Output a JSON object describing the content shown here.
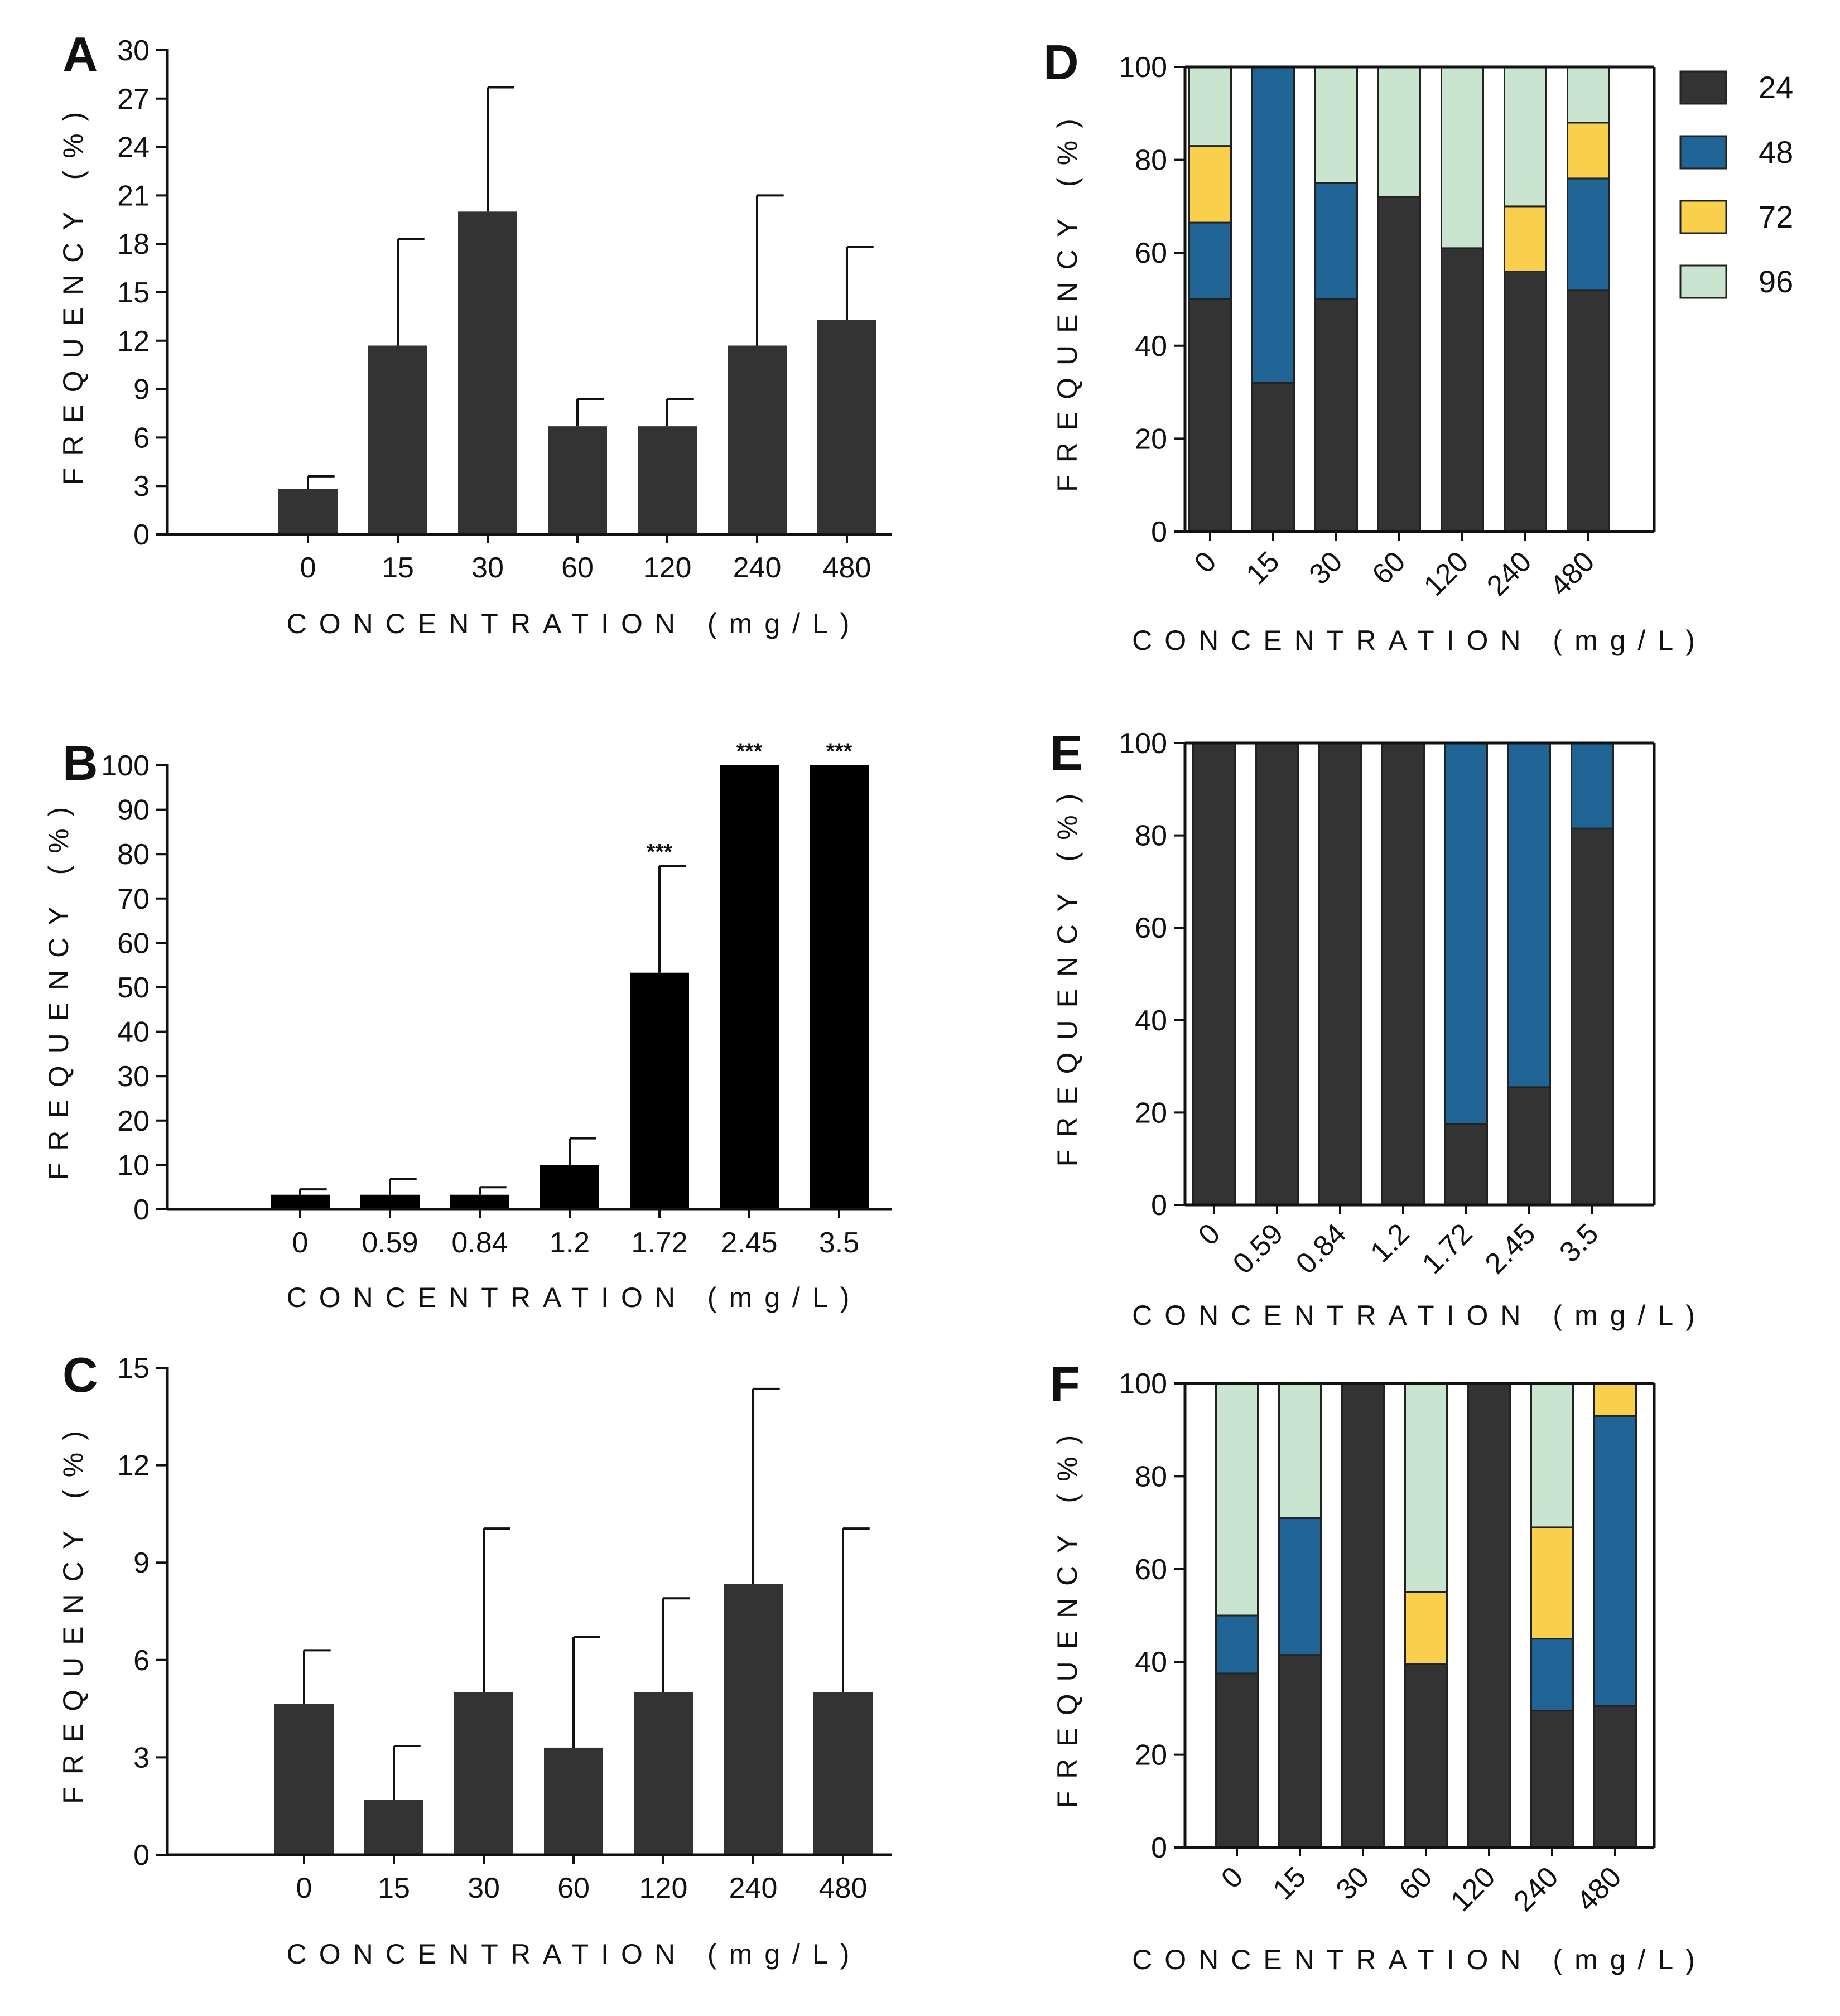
{
  "colors": {
    "bar_dark": "#333333",
    "bar_black": "#000000",
    "h24": "#333333",
    "h48": "#1f6494",
    "h72": "#f8d04c",
    "h96": "#c9e4cf",
    "axis": "#111111"
  },
  "legend": {
    "items": [
      {
        "label": "24",
        "color": "#333333"
      },
      {
        "label": "48",
        "color": "#1f6494"
      },
      {
        "label": "72",
        "color": "#f8d04c"
      },
      {
        "label": "96",
        "color": "#c9e4cf"
      }
    ]
  },
  "chart_data": [
    {
      "panel": "A",
      "type": "bar",
      "color": "#333333",
      "categories": [
        "0",
        "15",
        "30",
        "60",
        "120",
        "240",
        "480"
      ],
      "values": [
        2.8,
        11.7,
        20.0,
        6.7,
        6.7,
        11.7,
        13.3
      ],
      "errors": [
        0.8,
        6.6,
        7.7,
        1.7,
        1.7,
        9.3,
        4.5
      ],
      "ylim": [
        0,
        30
      ],
      "yticks": [
        0,
        3,
        6,
        9,
        12,
        15,
        18,
        21,
        24,
        27,
        30
      ],
      "ylabel": "FREQUENCY (%)",
      "xlabel": "CONCENTRATION (mg/L)",
      "annotations": [
        "",
        "",
        "",
        "",
        "",
        "",
        ""
      ]
    },
    {
      "panel": "B",
      "type": "bar",
      "color": "#000000",
      "categories": [
        "0",
        "0.59",
        "0.84",
        "1.2",
        "1.72",
        "2.45",
        "3.5"
      ],
      "values": [
        3.3,
        3.3,
        3.3,
        10.0,
        53.3,
        100,
        100
      ],
      "errors": [
        1.2,
        3.5,
        1.7,
        6.0,
        24.0,
        0,
        0
      ],
      "ylim": [
        0,
        100
      ],
      "yticks": [
        0,
        10,
        20,
        30,
        40,
        50,
        60,
        70,
        80,
        90,
        100
      ],
      "ylabel": "FREQUENCY (%)",
      "xlabel": "CONCENTRATION (mg/L)",
      "annotations": [
        "",
        "",
        "",
        "",
        "***",
        "***",
        "***"
      ]
    },
    {
      "panel": "C",
      "type": "bar",
      "color": "#333333",
      "categories": [
        "0",
        "15",
        "30",
        "60",
        "120",
        "240",
        "480"
      ],
      "values": [
        4.65,
        1.7,
        5.0,
        3.3,
        5.0,
        8.35,
        5.0
      ],
      "errors": [
        1.65,
        1.65,
        5.05,
        3.4,
        2.9,
        6.0,
        5.05
      ],
      "ylim": [
        0,
        15
      ],
      "yticks": [
        0,
        3,
        6,
        9,
        12,
        15
      ],
      "ylabel": "FREQUENCY (%)",
      "xlabel": "CONCENTRATION (mg/L)",
      "annotations": [
        "",
        "",
        "",
        "",
        "",
        "",
        ""
      ]
    },
    {
      "panel": "D",
      "type": "stacked-bar",
      "categories": [
        "0",
        "15",
        "30",
        "60",
        "120",
        "240",
        "480"
      ],
      "series": [
        {
          "name": "24",
          "color": "#333333",
          "values": [
            50,
            32,
            50,
            72,
            61,
            56,
            52
          ]
        },
        {
          "name": "48",
          "color": "#1f6494",
          "values": [
            16.5,
            68,
            25,
            0,
            0,
            0,
            24
          ]
        },
        {
          "name": "72",
          "color": "#f8d04c",
          "values": [
            16.5,
            0,
            0,
            0,
            0,
            14,
            12
          ]
        },
        {
          "name": "96",
          "color": "#c9e4cf",
          "values": [
            17,
            0,
            25,
            28,
            39,
            30,
            12
          ]
        }
      ],
      "ylim": [
        0,
        100
      ],
      "yticks": [
        0,
        20,
        40,
        60,
        80,
        100
      ],
      "ylabel": "FREQUENCY (%)",
      "xlabel": "CONCENTRATION (mg/L)"
    },
    {
      "panel": "E",
      "type": "stacked-bar",
      "categories": [
        "0",
        "0.59",
        "0.84",
        "1.2",
        "1.72",
        "2.45",
        "3.5"
      ],
      "series": [
        {
          "name": "24",
          "color": "#333333",
          "values": [
            100,
            100,
            100,
            100,
            17.5,
            25.5,
            81.5
          ]
        },
        {
          "name": "48",
          "color": "#1f6494",
          "values": [
            0,
            0,
            0,
            0,
            82.5,
            74.5,
            18.5
          ]
        },
        {
          "name": "72",
          "color": "#f8d04c",
          "values": [
            0,
            0,
            0,
            0,
            0,
            0,
            0
          ]
        },
        {
          "name": "96",
          "color": "#c9e4cf",
          "values": [
            0,
            0,
            0,
            0,
            0,
            0,
            0
          ]
        }
      ],
      "ylim": [
        0,
        100
      ],
      "yticks": [
        0,
        20,
        40,
        60,
        80,
        100
      ],
      "ylabel": "FREQUENCY (%)",
      "xlabel": "CONCENTRATION (mg/L)"
    },
    {
      "panel": "F",
      "type": "stacked-bar",
      "categories": [
        "0",
        "15",
        "30",
        "60",
        "120",
        "240",
        "480"
      ],
      "series": [
        {
          "name": "24",
          "color": "#333333",
          "values": [
            37.5,
            41.5,
            100,
            39.5,
            100,
            29.5,
            30.5
          ]
        },
        {
          "name": "48",
          "color": "#1f6494",
          "values": [
            12.5,
            29.5,
            0,
            0,
            0,
            15.5,
            62.5
          ]
        },
        {
          "name": "72",
          "color": "#f8d04c",
          "values": [
            0,
            0,
            0,
            15.5,
            0,
            24,
            7
          ]
        },
        {
          "name": "96",
          "color": "#c9e4cf",
          "values": [
            50,
            29,
            0,
            45,
            0,
            31,
            0
          ]
        }
      ],
      "ylim": [
        0,
        100
      ],
      "yticks": [
        0,
        20,
        40,
        60,
        80,
        100
      ],
      "ylabel": "FREQUENCY (%)",
      "xlabel": "CONCENTRATION (mg/L)"
    }
  ]
}
